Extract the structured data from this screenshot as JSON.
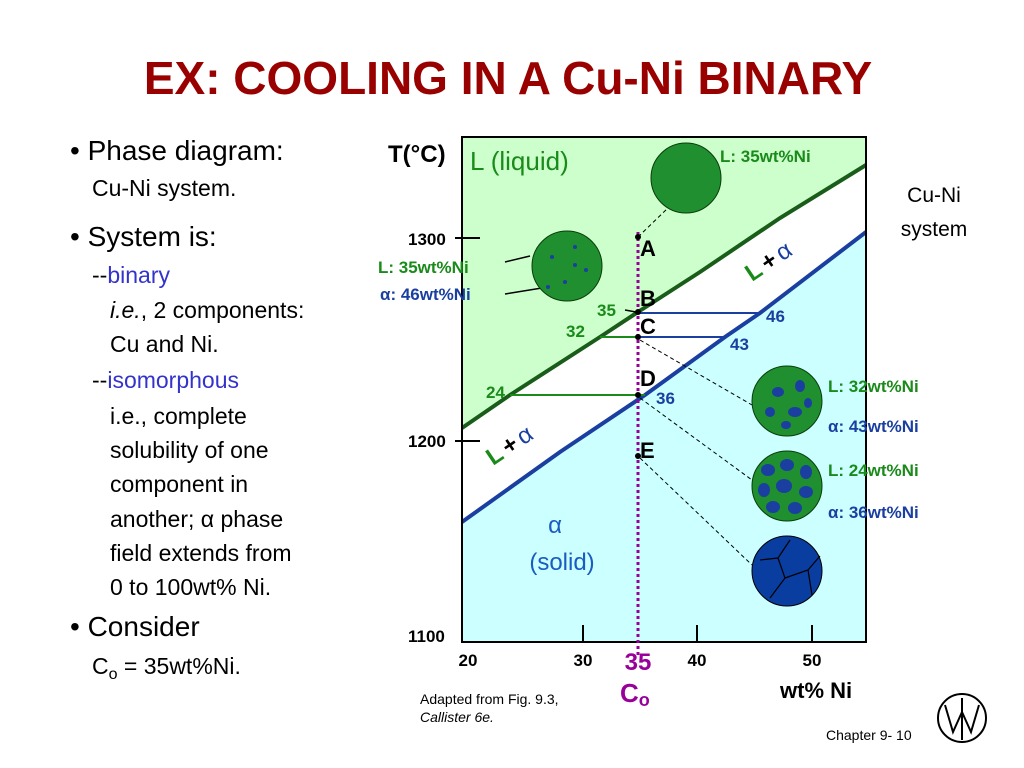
{
  "title": "EX:  COOLING IN A Cu-Ni BINARY",
  "bullets": {
    "b1": "• Phase diagram:",
    "b1_sub": "Cu-Ni system.",
    "b2": "• System is:",
    "binary_dash": "--",
    "binary": "binary",
    "ie_italic": "i.e.",
    "ie_rest": ", 2 components:",
    "cu_ni": "Cu and Ni.",
    "iso_dash": "--",
    "iso": "isomorphous",
    "lines": [
      "i.e., complete",
      "solubility of one",
      "component in"
    ],
    "another": "another; ",
    "alpha": "α",
    "phase": " phase",
    "lines2": [
      "field extends from",
      "0 to 100wt% Ni."
    ],
    "b3": "• Consider",
    "co_c": "C",
    "co_sub": "o",
    "co_rest": " = 35wt%Ni",
    "co_dot": "."
  },
  "diagram": {
    "y_axis_label": "T(°C)",
    "y_ticks": [
      "1300",
      "1200",
      "1100"
    ],
    "x_ticks": [
      "20",
      "30",
      "40",
      "50"
    ],
    "x_axis_label": "wt% Ni",
    "co_value": "35",
    "co_c": "C",
    "co_sub": "o",
    "liquid_label": "L (liquid)",
    "solid_alpha": "α",
    "solid_label": "(solid)",
    "two_phase": {
      "L": "L",
      "plus": "+",
      "alpha": "α"
    },
    "points": [
      "A",
      "B",
      "C",
      "D",
      "E"
    ],
    "tie_values": {
      "b_l": "35",
      "c_l": "32",
      "d_l": "24",
      "b_a": "46",
      "c_a": "43",
      "d_a": "36"
    },
    "comp_top": "L: 35wt%Ni",
    "comp_b": [
      "L: 35wt%Ni",
      "α: 46wt%Ni"
    ],
    "comp_c": [
      "L:  32wt%Ni",
      "α: 43wt%Ni"
    ],
    "comp_d": [
      "L: 24wt%Ni",
      "α: 36wt%Ni"
    ],
    "side_label": [
      "Cu-Ni",
      "system"
    ]
  },
  "caption": [
    "Adapted from Fig. 9.3,",
    "Callister 6e."
  ],
  "footer": "Chapter 9- 10"
}
